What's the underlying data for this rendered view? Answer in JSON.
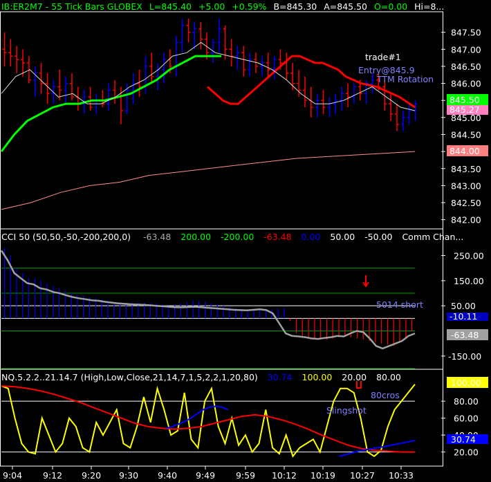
{
  "header": {
    "symbol": "IB:ER2M7 - 55 Tick Bars  GLOBEX",
    "last": "L=845.40",
    "change": "+5.00",
    "pct": "+0.59%",
    "bid": "B=845.30",
    "ask": "A=845.50",
    "open": "O=0.00",
    "high": "Hi=8..."
  },
  "colors": {
    "up": "#0000ff",
    "down": "#ff0000",
    "ema_fast": "#ff0000",
    "ema_green": "#00ff00",
    "ma_slow": "#ff9090",
    "ma_white": "#ffffff",
    "yellow": "#ffff00",
    "grid": "#00a000"
  },
  "price_panel": {
    "ylim": [
      841.75,
      848.0
    ],
    "yticks": [
      "847.50",
      "847.00",
      "846.50",
      "846.00",
      "845.50",
      "845.00",
      "844.50",
      "844.00",
      "843.50",
      "843.00",
      "842.50",
      "842.00"
    ],
    "last_badge": "845.50",
    "ma_badge": "845.27",
    "slow_badge": "844.00",
    "annotations": {
      "trade": "trade#1",
      "entry": "Entry@845.9",
      "rotation": "TTM Rotation"
    }
  },
  "cci_panel": {
    "title": "CCI 50  (50,50,-50,-200,200,0)",
    "v1": "-63.48",
    "v2": "200.00",
    "v3": "-200.00",
    "v4": "-63.48",
    "v5": "0.00",
    "v6": "50.00",
    "v7": "-50.00",
    "v8": "Comm Chan...",
    "ylim": [
      -200,
      290
    ],
    "yticks": [
      "250.00",
      "150.00",
      "50.00",
      "-150.00"
    ],
    "badge_main": "-63.48",
    "badge_under": "-10.11",
    "annotation": "5014 short"
  },
  "osc_panel": {
    "title": "NQ.5.2.2..21.14.7  (High,Low,Close,21,14,7,1,5,2,2,1,20,80)",
    "v1": "30.74",
    "v2": "100.00",
    "v3": "20.00",
    "v4": "80.00",
    "ylim": [
      5,
      103
    ],
    "yticks": [
      "100.00",
      "80.00",
      "60.00",
      "40.00",
      "20.00"
    ],
    "badge_blue": "30.74",
    "annotations": {
      "cros": "80cros",
      "sling": "Slingshot"
    }
  },
  "xaxis": {
    "labels": [
      "9:04",
      "9:12",
      "9:20",
      "9:30",
      "9:40",
      "9:49",
      "9:59",
      "10:12",
      "10:19",
      "10:27",
      "10:33"
    ]
  },
  "chart_data": [
    {
      "type": "bar",
      "title": "",
      "ylim": [
        841.75,
        848.0
      ],
      "bars": [
        [
          847.0,
          847.5,
          846.5,
          846.9
        ],
        [
          846.9,
          847.3,
          846.5,
          846.8
        ],
        [
          846.8,
          847.1,
          846.3,
          846.7
        ],
        [
          846.7,
          847.0,
          846.2,
          846.6
        ],
        [
          846.6,
          846.8,
          846.0,
          846.1
        ],
        [
          846.1,
          846.5,
          845.6,
          846.3
        ],
        [
          846.3,
          846.6,
          845.7,
          846.0
        ],
        [
          846.0,
          846.3,
          845.4,
          845.7
        ],
        [
          845.7,
          846.1,
          845.4,
          845.9
        ],
        [
          845.9,
          846.4,
          845.5,
          845.8
        ],
        [
          845.8,
          846.2,
          845.4,
          846.0
        ],
        [
          846.0,
          846.3,
          845.5,
          845.6
        ],
        [
          845.6,
          845.9,
          845.2,
          845.4
        ],
        [
          845.4,
          845.8,
          845.1,
          845.6
        ],
        [
          845.6,
          845.9,
          845.2,
          845.3
        ],
        [
          845.3,
          845.7,
          845.1,
          845.5
        ],
        [
          845.5,
          845.8,
          845.3,
          845.4
        ],
        [
          845.4,
          846.0,
          845.2,
          845.8
        ],
        [
          845.8,
          846.1,
          845.4,
          845.6
        ],
        [
          845.6,
          845.9,
          844.8,
          845.2
        ],
        [
          845.2,
          846.0,
          845.1,
          845.8
        ],
        [
          845.8,
          846.3,
          845.4,
          846.0
        ],
        [
          846.0,
          846.4,
          845.6,
          845.9
        ],
        [
          845.9,
          846.8,
          845.7,
          846.5
        ],
        [
          846.5,
          846.9,
          846.0,
          846.2
        ],
        [
          846.2,
          846.6,
          845.8,
          846.4
        ],
        [
          846.4,
          846.9,
          846.0,
          846.7
        ],
        [
          846.7,
          847.0,
          846.3,
          846.5
        ],
        [
          846.5,
          847.4,
          846.2,
          847.2
        ],
        [
          847.2,
          847.9,
          846.9,
          847.7
        ],
        [
          847.7,
          847.9,
          847.2,
          847.5
        ],
        [
          847.5,
          847.8,
          847.0,
          847.6
        ],
        [
          847.6,
          847.8,
          847.0,
          847.3
        ],
        [
          847.3,
          847.5,
          846.7,
          846.9
        ],
        [
          846.9,
          847.3,
          846.6,
          847.2
        ],
        [
          847.2,
          847.9,
          846.9,
          847.6
        ],
        [
          847.6,
          847.7,
          846.7,
          847.0
        ],
        [
          847.0,
          847.3,
          846.5,
          846.8
        ],
        [
          846.8,
          847.1,
          846.4,
          846.9
        ],
        [
          846.9,
          847.1,
          846.2,
          846.4
        ],
        [
          846.4,
          846.9,
          846.2,
          846.7
        ],
        [
          846.7,
          846.9,
          846.3,
          846.5
        ],
        [
          846.5,
          846.8,
          846.2,
          846.6
        ],
        [
          846.6,
          846.9,
          846.2,
          846.4
        ],
        [
          846.4,
          846.8,
          846.1,
          846.7
        ],
        [
          846.7,
          847.0,
          846.4,
          846.6
        ],
        [
          846.6,
          846.9,
          846.1,
          846.3
        ],
        [
          846.3,
          846.6,
          845.8,
          846.0
        ],
        [
          846.0,
          846.4,
          845.6,
          845.8
        ],
        [
          845.8,
          846.2,
          845.3,
          845.5
        ],
        [
          845.5,
          845.9,
          845.0,
          845.3
        ],
        [
          845.3,
          845.7,
          845.0,
          845.5
        ],
        [
          845.5,
          845.8,
          845.1,
          845.3
        ],
        [
          845.3,
          845.6,
          845.0,
          845.4
        ],
        [
          845.4,
          845.7,
          845.1,
          845.5
        ],
        [
          845.5,
          845.9,
          845.2,
          845.7
        ],
        [
          845.7,
          846.0,
          845.3,
          845.6
        ],
        [
          845.6,
          846.0,
          845.4,
          845.9
        ],
        [
          845.9,
          846.1,
          845.5,
          845.7
        ],
        [
          845.7,
          846.1,
          845.4,
          846.0
        ],
        [
          846.0,
          846.3,
          845.7,
          846.1
        ],
        [
          846.1,
          846.3,
          845.8,
          845.9
        ],
        [
          845.9,
          846.1,
          845.2,
          845.4
        ],
        [
          845.4,
          845.7,
          844.9,
          845.1
        ],
        [
          845.1,
          845.4,
          844.6,
          844.8
        ],
        [
          844.8,
          845.2,
          844.6,
          845.0
        ],
        [
          845.0,
          845.4,
          844.8,
          845.2
        ],
        [
          845.2,
          845.5,
          844.9,
          845.4
        ]
      ],
      "series": [
        {
          "name": "",
          "values": [
            845.9,
            845.7,
            845.5,
            845.4,
            845.4,
            845.6,
            845.8,
            846.0,
            846.2,
            846.4,
            846.6,
            846.8,
            846.8,
            846.7,
            846.6,
            846.6,
            846.5,
            846.4,
            846.2,
            846.1,
            846.0,
            845.95,
            845.9,
            845.8,
            845.7,
            845.6,
            845.45,
            845.3
          ]
        },
        {
          "name": "",
          "values": [
            844.0,
            844.5,
            844.9,
            845.1,
            845.3,
            845.4,
            845.4,
            845.5,
            845.5,
            845.6,
            845.7,
            845.9,
            846.1,
            846.4,
            846.6,
            846.8,
            846.8,
            846.8
          ]
        },
        {
          "name": "",
          "values": [
            842.3,
            842.5,
            842.8,
            843.0,
            843.1,
            843.3,
            843.4,
            843.5,
            843.6,
            843.7,
            843.8,
            843.85,
            843.9,
            843.95,
            844.0
          ]
        },
        {
          "name": "",
          "values": [
            845.7,
            846.2,
            846.4,
            846.0,
            845.6,
            845.7,
            845.4,
            845.4,
            845.6,
            845.9,
            846.1,
            846.4,
            846.8,
            846.9,
            847.2,
            846.9,
            846.8,
            846.7,
            846.6,
            846.4,
            846.1,
            845.7,
            845.4,
            845.4,
            845.5,
            845.7,
            845.9,
            845.6,
            845.3,
            845.2
          ]
        }
      ]
    },
    {
      "type": "bar",
      "title": "",
      "ylim": [
        -200,
        290
      ],
      "values": [
        280,
        250,
        200,
        180,
        160,
        160,
        150,
        140,
        130,
        120,
        110,
        100,
        95,
        90,
        85,
        80,
        75,
        70,
        65,
        60,
        60,
        62,
        65,
        62,
        60,
        60,
        55,
        50,
        55,
        60,
        65,
        70,
        70,
        65,
        60,
        55,
        50,
        45,
        40,
        38,
        36,
        34,
        32,
        34,
        36,
        38,
        40,
        -10,
        -60,
        -70,
        -75,
        -80,
        -85,
        -85,
        -80,
        -75,
        -70,
        -75,
        -80,
        -85,
        -90,
        -95,
        -100,
        -105,
        -110,
        -95,
        -80,
        -50
      ],
      "series": [
        {
          "name": "",
          "values": [
            270,
            230,
            180,
            160,
            140,
            135,
            120,
            115,
            105,
            100,
            92,
            85,
            80,
            76,
            72,
            70,
            66,
            63,
            60,
            58,
            56,
            55,
            54,
            52,
            50,
            48,
            46,
            44,
            44,
            45,
            46,
            44,
            42,
            40,
            38,
            36,
            34,
            33,
            32,
            34,
            36,
            33,
            20,
            -20,
            -60,
            -70,
            -72,
            -75,
            -80,
            -82,
            -78,
            -75,
            -70,
            -72,
            -60,
            -50,
            -55,
            -80,
            -110,
            -120,
            -110,
            -100,
            -90,
            -70,
            -60
          ]
        }
      ]
    },
    {
      "type": "line",
      "title": "",
      "ylim": [
        5,
        103
      ],
      "series": [
        {
          "name": "",
          "values": [
            98,
            95,
            60,
            30,
            20,
            18,
            60,
            40,
            20,
            30,
            60,
            50,
            25,
            20,
            55,
            40,
            55,
            70,
            30,
            25,
            50,
            85,
            55,
            95,
            70,
            40,
            45,
            90,
            35,
            25,
            80,
            95,
            50,
            30,
            60,
            28,
            40,
            20,
            30,
            70,
            25,
            18,
            40,
            15,
            25,
            30,
            35,
            20,
            50,
            80,
            95,
            95,
            90,
            60,
            20,
            15,
            22,
            50,
            70,
            80,
            90,
            100
          ]
        },
        {
          "name": "",
          "values": [
            98,
            97,
            95,
            92,
            88,
            83,
            78,
            72,
            66,
            60,
            54,
            50,
            48,
            47,
            48,
            50,
            54,
            58,
            62,
            64,
            62,
            58,
            53,
            47,
            40,
            34,
            28,
            24,
            22,
            21,
            20,
            20
          ]
        },
        {
          "name": "",
          "values": [
            48,
            50,
            53,
            56,
            60,
            65,
            70,
            73,
            74,
            73,
            70
          ]
        }
      ]
    }
  ]
}
